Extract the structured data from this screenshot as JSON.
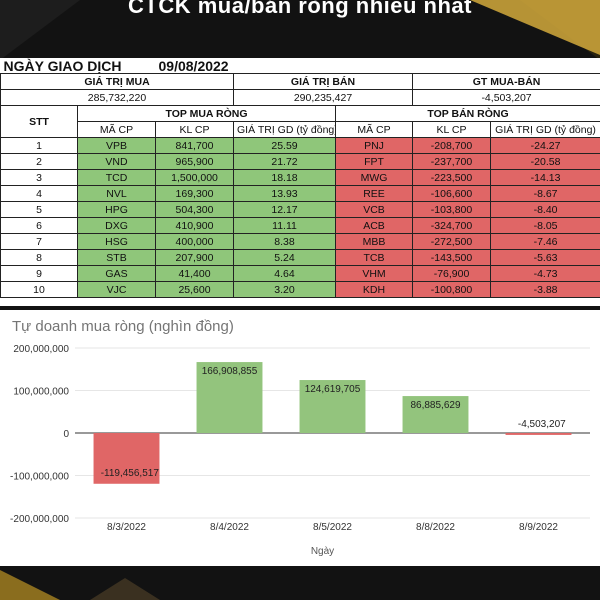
{
  "banner": {
    "title": "CTCK mua/bán ròng nhiều nhất"
  },
  "header": {
    "date_label": "NGÀY GIAO DỊCH",
    "date_value": "09/08/2022",
    "buy_value_label": "GIÁ TRỊ MUA",
    "buy_value": "285,732,220",
    "sell_value_label": "GIÁ TRỊ BÁN",
    "sell_value": "290,235,427",
    "net_label": "GT MUA-BÁN",
    "net_value": "-4,503,207"
  },
  "table": {
    "stt_label": "STT",
    "top_buy_label": "TOP MUA RÒNG",
    "top_sell_label": "TOP BÁN RÒNG",
    "col_code": "MÃ CP",
    "col_vol": "KL CP",
    "col_value": "GIÁ TRỊ GD (tỷ đồng)",
    "rows": [
      {
        "stt": "1",
        "buy_code": "VPB",
        "buy_vol": "841,700",
        "buy_val": "25.59",
        "sell_code": "PNJ",
        "sell_vol": "-208,700",
        "sell_val": "-24.27"
      },
      {
        "stt": "2",
        "buy_code": "VND",
        "buy_vol": "965,900",
        "buy_val": "21.72",
        "sell_code": "FPT",
        "sell_vol": "-237,700",
        "sell_val": "-20.58"
      },
      {
        "stt": "3",
        "buy_code": "TCD",
        "buy_vol": "1,500,000",
        "buy_val": "18.18",
        "sell_code": "MWG",
        "sell_vol": "-223,500",
        "sell_val": "-14.13"
      },
      {
        "stt": "4",
        "buy_code": "NVL",
        "buy_vol": "169,300",
        "buy_val": "13.93",
        "sell_code": "REE",
        "sell_vol": "-106,600",
        "sell_val": "-8.67"
      },
      {
        "stt": "5",
        "buy_code": "HPG",
        "buy_vol": "504,300",
        "buy_val": "12.17",
        "sell_code": "VCB",
        "sell_vol": "-103,800",
        "sell_val": "-8.40"
      },
      {
        "stt": "6",
        "buy_code": "DXG",
        "buy_vol": "410,900",
        "buy_val": "11.11",
        "sell_code": "ACB",
        "sell_vol": "-324,700",
        "sell_val": "-8.05"
      },
      {
        "stt": "7",
        "buy_code": "HSG",
        "buy_vol": "400,000",
        "buy_val": "8.38",
        "sell_code": "MBB",
        "sell_vol": "-272,500",
        "sell_val": "-7.46"
      },
      {
        "stt": "8",
        "buy_code": "STB",
        "buy_vol": "207,900",
        "buy_val": "5.24",
        "sell_code": "TCB",
        "sell_vol": "-143,500",
        "sell_val": "-5.63"
      },
      {
        "stt": "9",
        "buy_code": "GAS",
        "buy_vol": "41,400",
        "buy_val": "4.64",
        "sell_code": "VHM",
        "sell_vol": "-76,900",
        "sell_val": "-4.73"
      },
      {
        "stt": "10",
        "buy_code": "VJC",
        "buy_vol": "25,600",
        "buy_val": "3.20",
        "sell_code": "KDH",
        "sell_vol": "-100,800",
        "sell_val": "-3.88"
      }
    ]
  },
  "colors": {
    "positive": "#93c47d",
    "negative": "#e06666",
    "buy_cell": "#8fc67a",
    "sell_cell": "#e06666"
  },
  "chart_data": {
    "type": "bar",
    "title": "Tự doanh mua ròng (nghìn đồng)",
    "xlabel": "Ngày",
    "ylabel": "",
    "categories": [
      "8/3/2022",
      "8/4/2022",
      "8/5/2022",
      "8/8/2022",
      "8/9/2022"
    ],
    "values": [
      -119456517,
      166908855,
      124619705,
      86885629,
      -4503207
    ],
    "value_labels": [
      "-119,456,517",
      "166,908,855",
      "124,619,705",
      "86,885,629",
      "-4,503,207"
    ],
    "ylim": [
      -200000000,
      200000000
    ],
    "yticks": [
      200000000,
      100000000,
      0,
      -100000000,
      -200000000
    ],
    "ytick_labels": [
      "200,000,000",
      "100,000,000",
      "0",
      "-100,000,000",
      "-200,000,000"
    ],
    "grid": true,
    "legend": "none"
  }
}
